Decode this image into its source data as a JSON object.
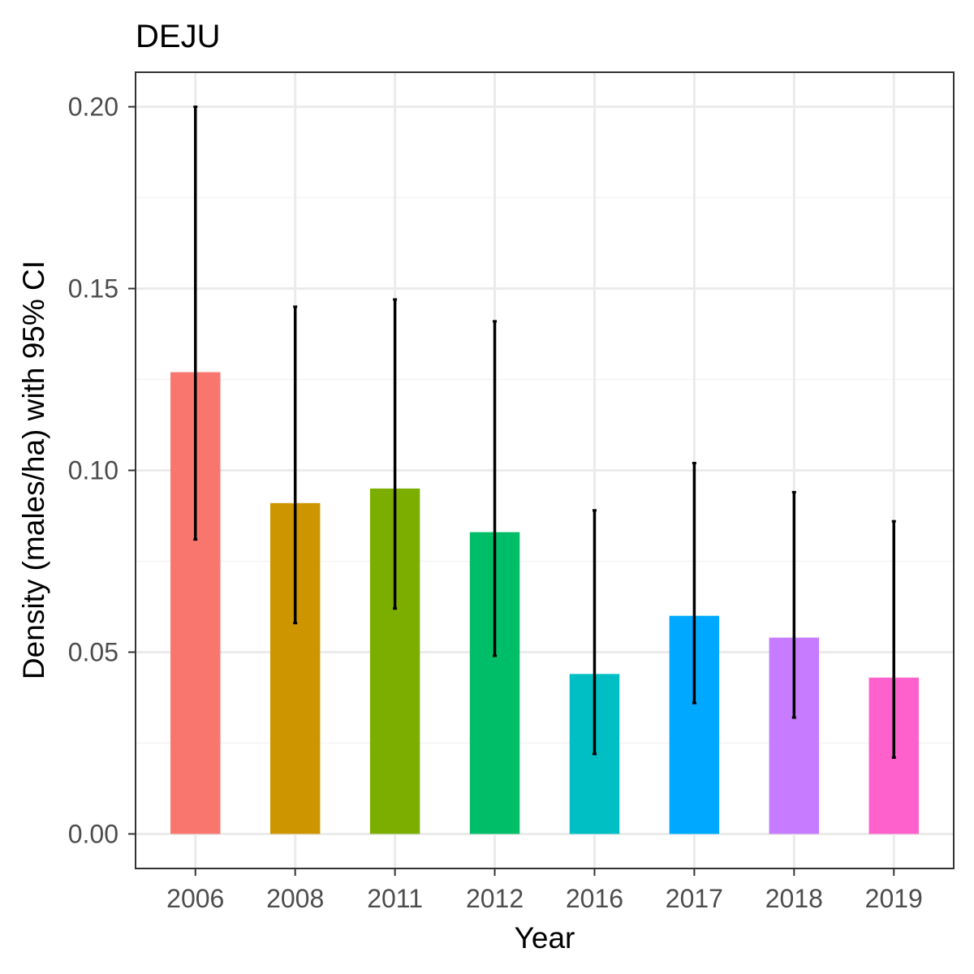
{
  "chart_data": {
    "type": "bar",
    "title": "DEJU",
    "xlabel": "Year",
    "ylabel": "Density (males/ha) with 95% CI",
    "categories": [
      "2006",
      "2008",
      "2011",
      "2012",
      "2016",
      "2017",
      "2018",
      "2019"
    ],
    "values": [
      0.127,
      0.091,
      0.095,
      0.083,
      0.044,
      0.06,
      0.054,
      0.043
    ],
    "ci_lower": [
      0.081,
      0.058,
      0.062,
      0.049,
      0.022,
      0.036,
      0.032,
      0.021
    ],
    "ci_upper": [
      0.2,
      0.145,
      0.147,
      0.141,
      0.089,
      0.102,
      0.094,
      0.086
    ],
    "colors": [
      "#F8766D",
      "#CD9600",
      "#7CAE00",
      "#00BE67",
      "#00BFC4",
      "#00A9FF",
      "#C77CFF",
      "#FF61CC"
    ],
    "ylim": [
      -0.0095,
      0.2095
    ],
    "yticks": [
      0.0,
      0.05,
      0.1,
      0.15,
      0.2
    ],
    "ytick_labels": [
      "0.00",
      "0.05",
      "0.10",
      "0.15",
      "0.20"
    ],
    "grid": true,
    "legend": "none",
    "theme": {
      "panel_border": "#333333",
      "grid_major": "#ebebeb",
      "grid_minor": "#f4f4f4",
      "errorbar": "#000000"
    }
  }
}
